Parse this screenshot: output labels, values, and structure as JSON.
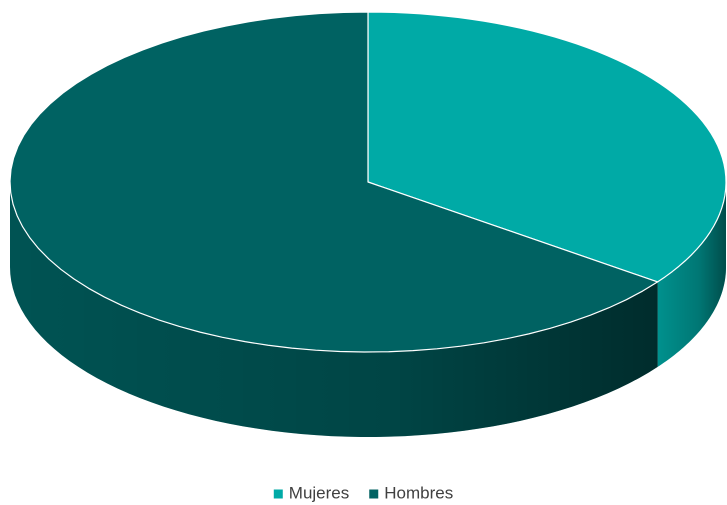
{
  "chart_data": {
    "type": "pie",
    "three_d": true,
    "categories": [
      "Mujeres",
      "Hombres"
    ],
    "values": [
      35,
      65
    ],
    "colors": [
      "#00aaa6",
      "#006262"
    ],
    "legend": "bottom"
  }
}
